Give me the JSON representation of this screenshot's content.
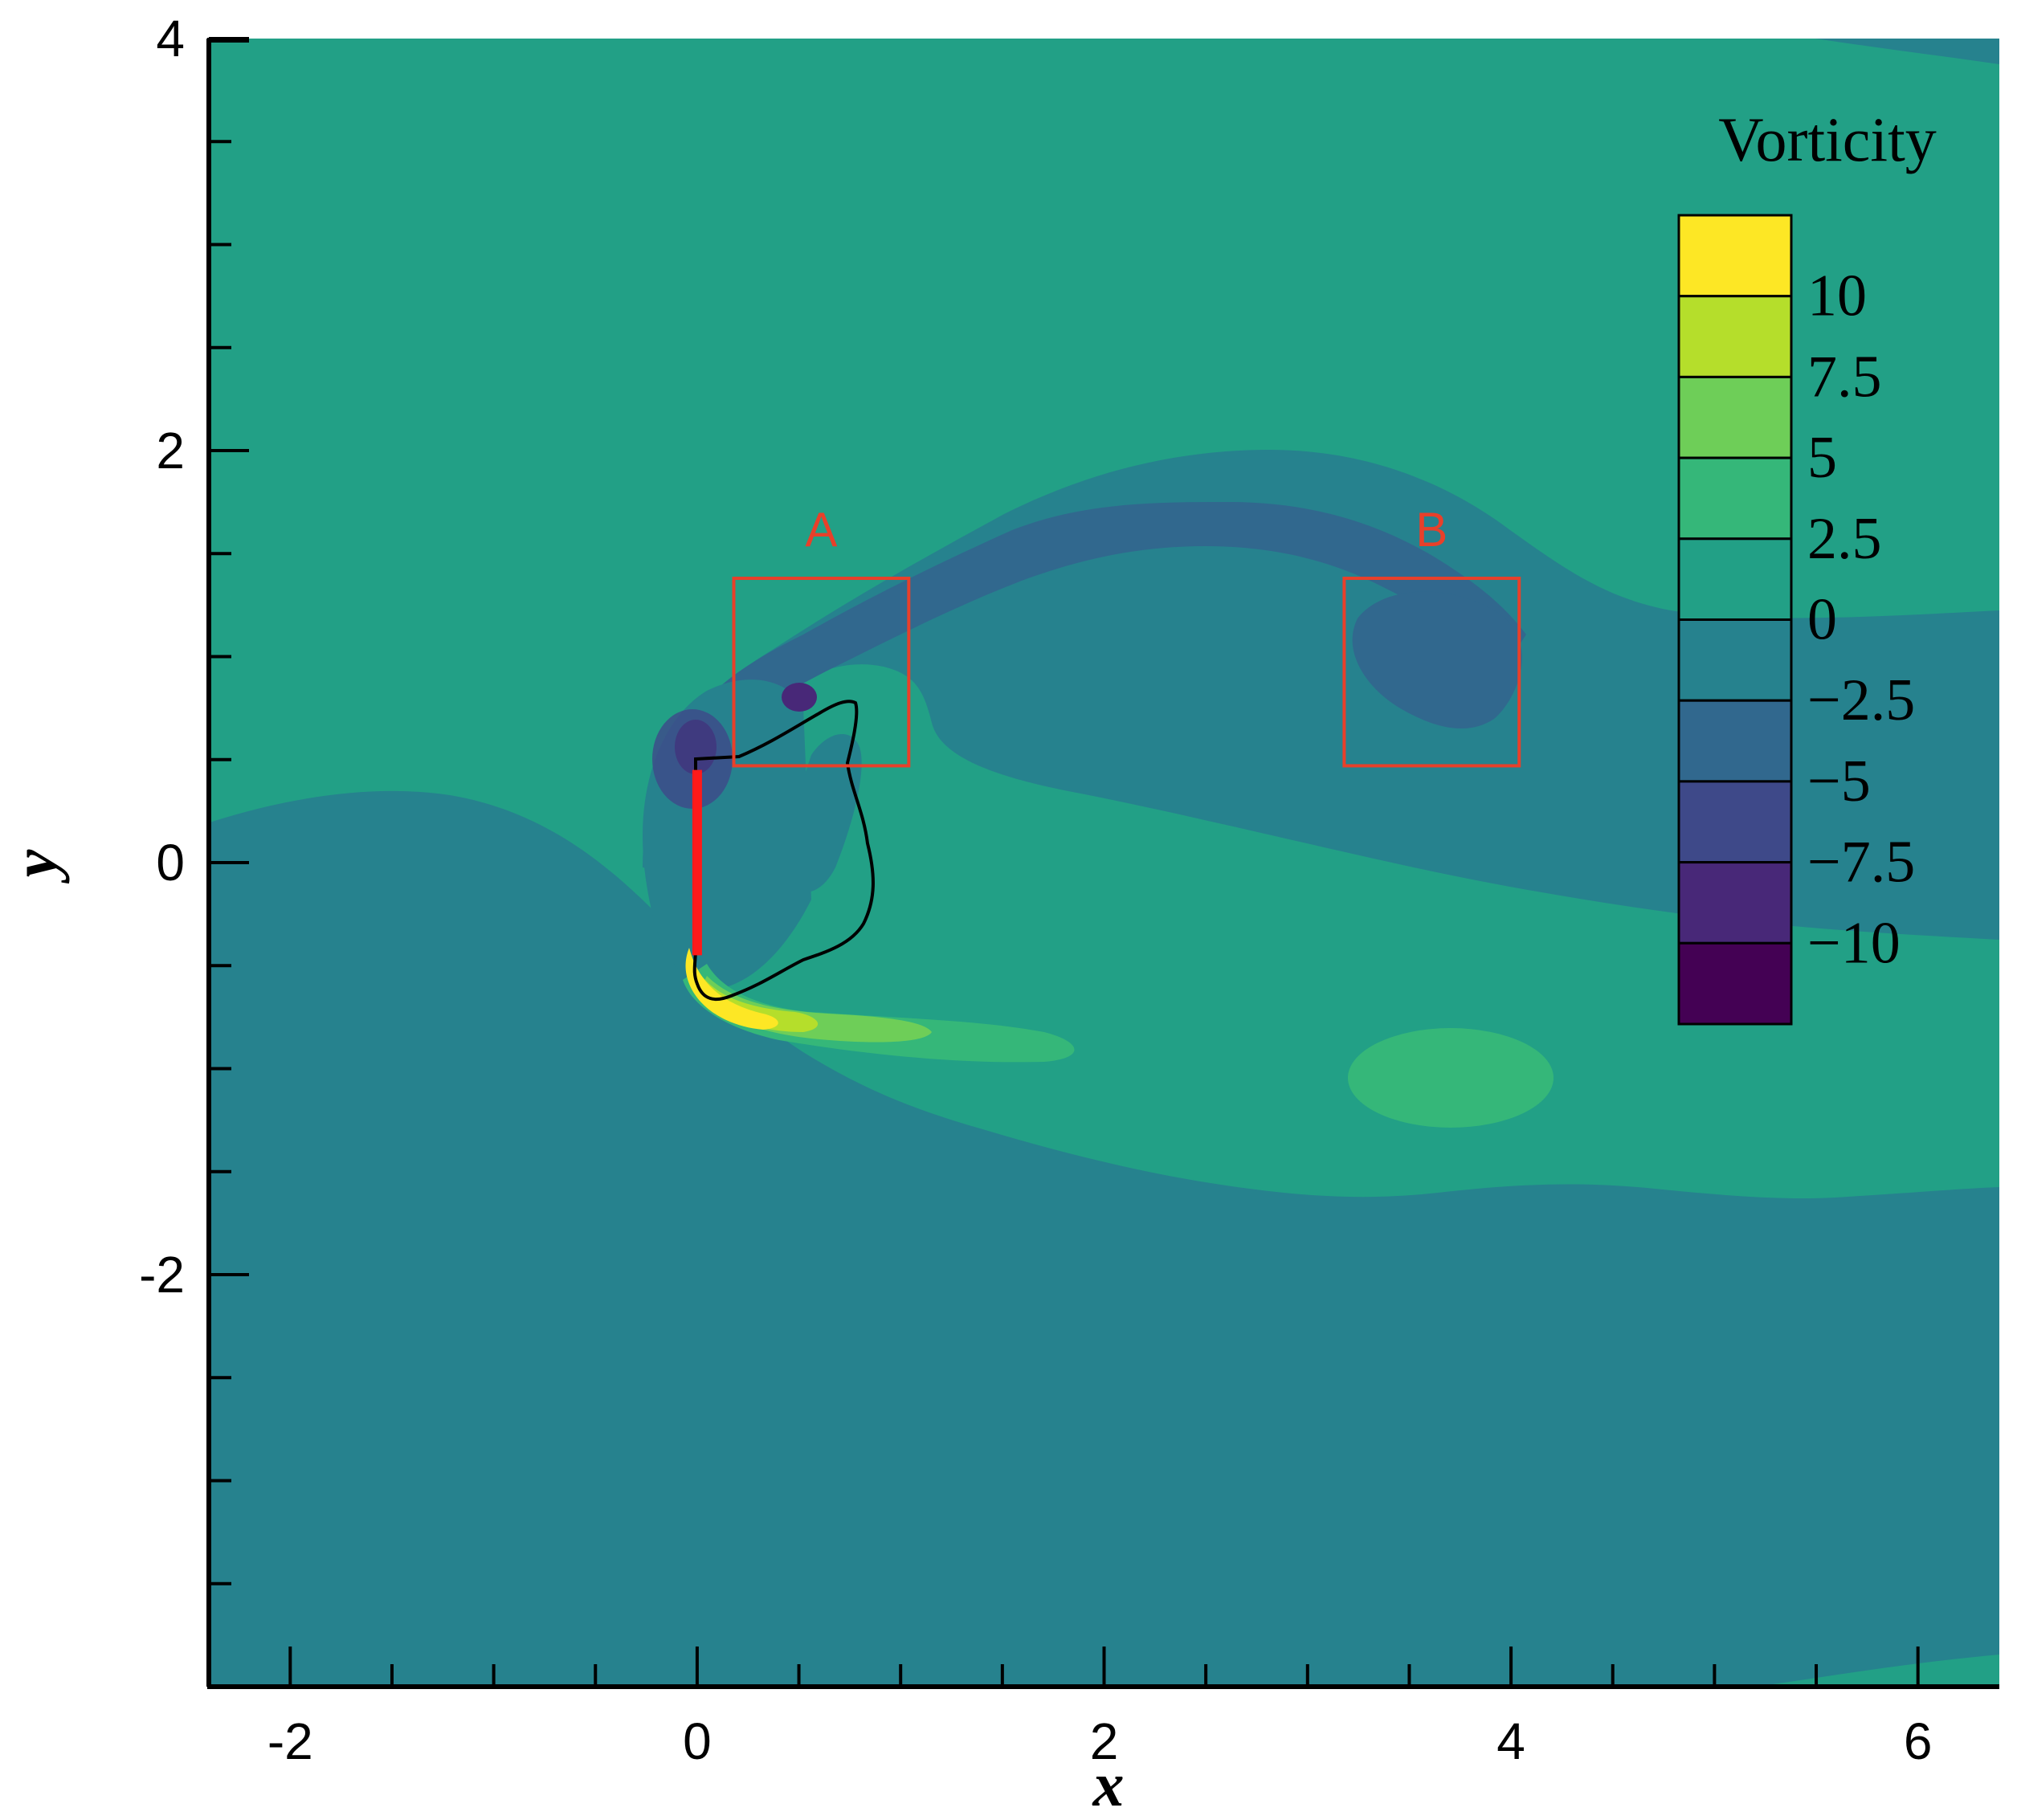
{
  "chart_data": {
    "type": "heatmap",
    "title": "",
    "xlabel": "x",
    "ylabel": "y",
    "xlim": [
      -2.4,
      6.4
    ],
    "ylim": [
      -4.0,
      4.0
    ],
    "x_ticks": [
      -2,
      0,
      2,
      4,
      6
    ],
    "x_tick_labels": [
      "-2",
      "0",
      "2",
      "4",
      "6"
    ],
    "y_ticks": [
      4,
      2,
      0,
      -2
    ],
    "y_tick_labels": [
      "4",
      "2",
      "0",
      "-2"
    ],
    "grid": false,
    "colorbar": {
      "title": "Vorticity",
      "levels": [
        {
          "min": 10,
          "max": 12.5,
          "color": "#fde725"
        },
        {
          "min": 7.5,
          "max": 10,
          "color": "#b5de2b"
        },
        {
          "min": 5,
          "max": 7.5,
          "color": "#6ece58"
        },
        {
          "min": 2.5,
          "max": 5,
          "color": "#35b779"
        },
        {
          "min": 0,
          "max": 2.5,
          "color": "#22a086"
        },
        {
          "min": -2.5,
          "max": 0,
          "color": "#26828e"
        },
        {
          "min": -5,
          "max": -2.5,
          "color": "#31688e"
        },
        {
          "min": -7.5,
          "max": -5,
          "color": "#3e4989"
        },
        {
          "min": -10,
          "max": -7.5,
          "color": "#482878"
        },
        {
          "min": -12.5,
          "max": -10,
          "color": "#440154"
        }
      ],
      "tick_values": [
        10,
        7.5,
        5,
        2.5,
        0,
        -2.5,
        -5,
        -7.5,
        -10
      ],
      "tick_labels": [
        "10",
        "7.5",
        "5",
        "2.5",
        "0",
        "−2.5",
        "−5",
        "−7.5",
        "−10"
      ]
    },
    "plate": {
      "x": 0,
      "y_range": [
        -0.45,
        0.45
      ],
      "color": "#ff1a1a"
    },
    "annotations": [
      {
        "label": "A",
        "x_range": [
          0.18,
          1.04
        ],
        "y_range": [
          0.47,
          1.38
        ],
        "color": "#e8402a"
      },
      {
        "label": "B",
        "x_range": [
          3.18,
          4.04
        ],
        "y_range": [
          0.47,
          1.38
        ],
        "color": "#e8402a"
      }
    ]
  }
}
